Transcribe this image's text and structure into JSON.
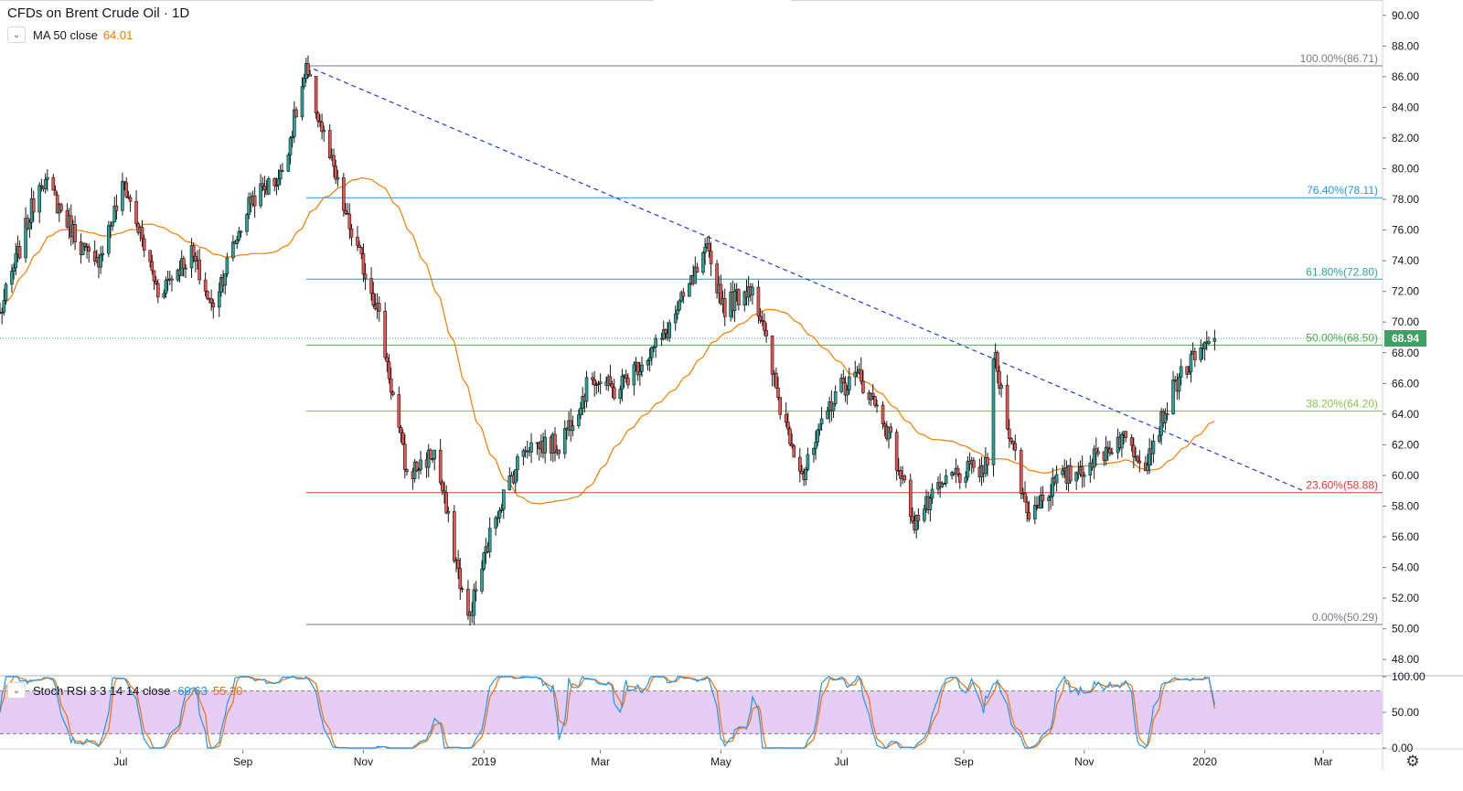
{
  "legend": {
    "title": "CFDs on Brent Crude Oil · 1D",
    "ma_label": "MA 50 close",
    "ma_value": "64.01",
    "collapse_glyph": "⌄"
  },
  "stoch_legend": {
    "label": "Stoch RSI 3 3 14 14 close",
    "k_value": "60.63",
    "d_value": "55.20"
  },
  "price_badge": "68.94",
  "colors": {
    "candle_up": "#26a69a",
    "candle_down": "#ef5350",
    "candle_border": "#1a1a1a",
    "ma": "#f57c00",
    "trendline": "#1f3bd6",
    "stoch_k": "#2196f3",
    "stoch_d": "#ff6d00",
    "stoch_band": "#e1c4f5",
    "badge": "#3fa066"
  },
  "icons": {
    "settings": "gear-icon",
    "collapse": "chevron-down-icon"
  },
  "chart_data": {
    "type": "candlestick",
    "title": "CFDs on Brent Crude Oil · 1D",
    "ylim": [
      47,
      91
    ],
    "y_ticks": [
      "90.00",
      "88.00",
      "86.00",
      "84.00",
      "82.00",
      "80.00",
      "78.00",
      "76.00",
      "74.00",
      "72.00",
      "70.00",
      "68.00",
      "66.00",
      "64.00",
      "62.00",
      "60.00",
      "58.00",
      "56.00",
      "54.00",
      "52.00",
      "50.00",
      "48.00"
    ],
    "x_ticks": [
      "Jul",
      "Sep",
      "Nov",
      "2019",
      "Mar",
      "May",
      "Jul",
      "Sep",
      "Nov",
      "2020",
      "Mar"
    ],
    "date_range": [
      "2018-05-01",
      "2020-03-31"
    ],
    "last_price": 68.94,
    "moving_average": {
      "name": "MA 50 close",
      "last": 64.01
    },
    "fibonacci": [
      {
        "label": "100.00%(86.71)",
        "value": 86.71,
        "color": "#787b86"
      },
      {
        "label": "76.40%(78.11)",
        "value": 78.11,
        "color": "#2196f3"
      },
      {
        "label": "61.80%(72.80)",
        "value": 72.8,
        "color": "#26a69a"
      },
      {
        "label": "50.00%(68.50)",
        "value": 68.5,
        "color": "#4caf50"
      },
      {
        "label": "38.20%(64.20)",
        "value": 64.2,
        "color": "#8bc34a"
      },
      {
        "label": "23.60%(58.88)",
        "value": 58.88,
        "color": "#e53935"
      },
      {
        "label": "0.00%(50.29)",
        "value": 50.29,
        "color": "#787b86"
      }
    ],
    "trendline": {
      "from": [
        "2018-10-03",
        86.71
      ],
      "to": [
        "2020-02-20",
        59.0
      ]
    },
    "price_path": [
      [
        "2018-05-01",
        70.5
      ],
      [
        "2018-05-22",
        79.5
      ],
      [
        "2018-06-18",
        73.5
      ],
      [
        "2018-07-03",
        79.0
      ],
      [
        "2018-07-20",
        72.0
      ],
      [
        "2018-08-06",
        74.5
      ],
      [
        "2018-08-16",
        71.0
      ],
      [
        "2018-09-05",
        78.0
      ],
      [
        "2018-09-20",
        79.5
      ],
      [
        "2018-10-03",
        86.3
      ],
      [
        "2018-10-24",
        76.5
      ],
      [
        "2018-11-08",
        71.0
      ],
      [
        "2018-11-23",
        60.0
      ],
      [
        "2018-12-07",
        61.5
      ],
      [
        "2018-12-24",
        50.5
      ],
      [
        "2019-01-07",
        57.5
      ],
      [
        "2019-01-22",
        62.0
      ],
      [
        "2019-02-08",
        62.0
      ],
      [
        "2019-02-25",
        66.5
      ],
      [
        "2019-03-08",
        65.5
      ],
      [
        "2019-04-02",
        69.0
      ],
      [
        "2019-04-24",
        74.5
      ],
      [
        "2019-05-03",
        71.0
      ],
      [
        "2019-05-17",
        72.5
      ],
      [
        "2019-05-31",
        64.5
      ],
      [
        "2019-06-12",
        60.0
      ],
      [
        "2019-06-28",
        65.5
      ],
      [
        "2019-07-10",
        66.5
      ],
      [
        "2019-07-23",
        63.5
      ],
      [
        "2019-08-07",
        57.0
      ],
      [
        "2019-08-26",
        60.0
      ],
      [
        "2019-09-13",
        60.5
      ],
      [
        "2019-09-16",
        68.0
      ],
      [
        "2019-10-03",
        57.5
      ],
      [
        "2019-10-17",
        59.5
      ],
      [
        "2019-10-31",
        60.5
      ],
      [
        "2019-11-20",
        62.5
      ],
      [
        "2019-12-02",
        61.0
      ],
      [
        "2019-12-19",
        66.5
      ],
      [
        "2020-01-06",
        68.9
      ]
    ],
    "indicator": {
      "name": "Stoch RSI 3 3 14 14 close",
      "k": 60.63,
      "d": 55.2,
      "ylim": [
        0,
        100
      ],
      "bands": [
        20,
        80
      ],
      "y_ticks": [
        "100.00",
        "50.00",
        "0.00"
      ]
    }
  }
}
